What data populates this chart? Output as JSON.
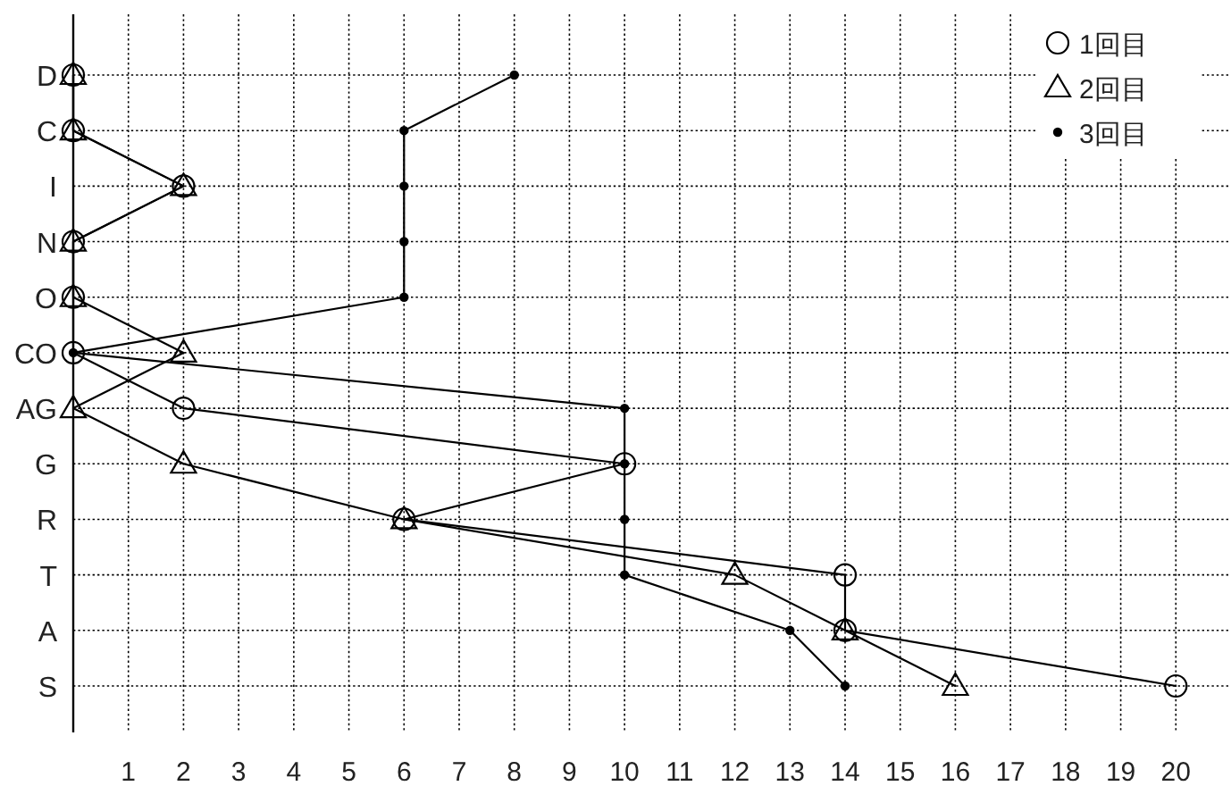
{
  "chart_data": {
    "type": "line",
    "orientation": "horizontal",
    "categories": [
      "D",
      "C",
      "I",
      "N",
      "O",
      "CO",
      "AG",
      "G",
      "R",
      "T",
      "A",
      "S"
    ],
    "xlim": [
      0,
      21
    ],
    "xticks": [
      1,
      2,
      3,
      4,
      5,
      6,
      7,
      8,
      9,
      10,
      11,
      12,
      13,
      14,
      15,
      16,
      17,
      18,
      19,
      20
    ],
    "grid": true,
    "legend": "top right",
    "line_style": "solid",
    "series": [
      {
        "name": "1回目",
        "color": "#000000",
        "marker": "circle",
        "values": [
          0,
          0,
          2,
          0,
          0,
          0,
          2,
          10,
          6,
          14,
          14,
          20
        ]
      },
      {
        "name": "2回目",
        "color": "#000000",
        "marker": "triangle",
        "values": [
          0,
          0,
          2,
          0,
          0,
          2,
          0,
          2,
          6,
          12,
          14,
          16
        ]
      },
      {
        "name": "3回目",
        "color": "#000000",
        "marker": "dot",
        "values": [
          8,
          6,
          6,
          6,
          6,
          0,
          10,
          10,
          10,
          10,
          13,
          14
        ]
      }
    ]
  }
}
